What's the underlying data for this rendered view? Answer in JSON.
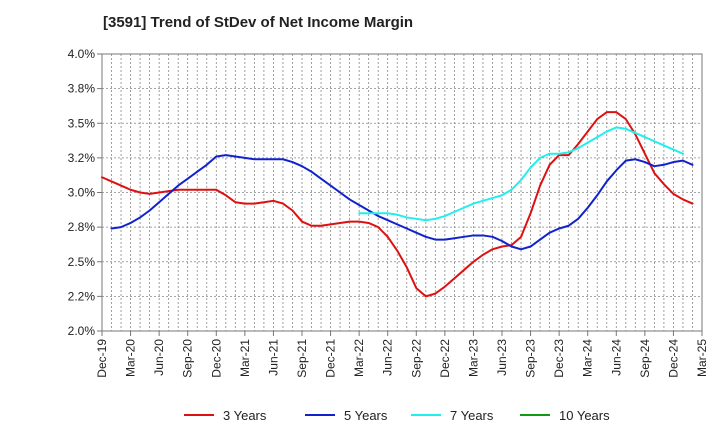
{
  "chart_data": {
    "type": "line",
    "title": "[3591]  Trend of StDev of Net Income Margin",
    "xlabel": "",
    "ylabel": "",
    "ylim": [
      0.02,
      0.04
    ],
    "y_ticks": [
      0.02,
      0.0225,
      0.025,
      0.0275,
      0.03,
      0.0325,
      0.035,
      0.0375,
      0.04
    ],
    "y_tick_labels": [
      "2.0%",
      "2.2%",
      "2.5%",
      "2.8%",
      "3.0%",
      "3.2%",
      "3.5%",
      "3.8%",
      "4.0%"
    ],
    "x_tick_labels": [
      "Dec-19",
      "Mar-20",
      "Jun-20",
      "Sep-20",
      "Dec-20",
      "Mar-21",
      "Jun-21",
      "Sep-21",
      "Dec-21",
      "Mar-22",
      "Jun-22",
      "Sep-22",
      "Dec-22",
      "Mar-23",
      "Jun-23",
      "Sep-23",
      "Dec-23",
      "Mar-24",
      "Jun-24",
      "Sep-24",
      "Dec-24",
      "Mar-25"
    ],
    "grid": true,
    "legend_position": "bottom",
    "series": [
      {
        "name": "3 Years",
        "color": "#dd1111",
        "points": [
          [
            "Dec-19",
            0.0311
          ],
          [
            "Jan-20",
            0.0308
          ],
          [
            "Feb-20",
            0.0305
          ],
          [
            "Mar-20",
            0.0302
          ],
          [
            "Apr-20",
            0.03
          ],
          [
            "May-20",
            0.0299
          ],
          [
            "Jun-20",
            0.03
          ],
          [
            "Jul-20",
            0.0301
          ],
          [
            "Aug-20",
            0.0302
          ],
          [
            "Sep-20",
            0.0302
          ],
          [
            "Oct-20",
            0.0302
          ],
          [
            "Nov-20",
            0.0302
          ],
          [
            "Dec-20",
            0.0302
          ],
          [
            "Jan-21",
            0.0298
          ],
          [
            "Feb-21",
            0.0293
          ],
          [
            "Mar-21",
            0.0292
          ],
          [
            "Apr-21",
            0.0292
          ],
          [
            "May-21",
            0.0293
          ],
          [
            "Jun-21",
            0.0294
          ],
          [
            "Jul-21",
            0.0292
          ],
          [
            "Aug-21",
            0.0287
          ],
          [
            "Sep-21",
            0.0279
          ],
          [
            "Oct-21",
            0.0276
          ],
          [
            "Nov-21",
            0.0276
          ],
          [
            "Dec-21",
            0.0277
          ],
          [
            "Jan-22",
            0.0278
          ],
          [
            "Feb-22",
            0.0279
          ],
          [
            "Mar-22",
            0.0279
          ],
          [
            "Apr-22",
            0.0278
          ],
          [
            "May-22",
            0.0275
          ],
          [
            "Jun-22",
            0.0268
          ],
          [
            "Jul-22",
            0.0258
          ],
          [
            "Aug-22",
            0.0246
          ],
          [
            "Sep-22",
            0.0231
          ],
          [
            "Oct-22",
            0.0225
          ],
          [
            "Nov-22",
            0.0227
          ],
          [
            "Dec-22",
            0.0232
          ],
          [
            "Jan-23",
            0.0238
          ],
          [
            "Feb-23",
            0.0244
          ],
          [
            "Mar-23",
            0.025
          ],
          [
            "Apr-23",
            0.0255
          ],
          [
            "May-23",
            0.0259
          ],
          [
            "Jun-23",
            0.0261
          ],
          [
            "Jul-23",
            0.0262
          ],
          [
            "Aug-23",
            0.0268
          ],
          [
            "Sep-23",
            0.0285
          ],
          [
            "Oct-23",
            0.0305
          ],
          [
            "Nov-23",
            0.032
          ],
          [
            "Dec-23",
            0.0327
          ],
          [
            "Jan-24",
            0.0327
          ],
          [
            "Feb-24",
            0.0335
          ],
          [
            "Mar-24",
            0.0344
          ],
          [
            "Apr-24",
            0.0353
          ],
          [
            "May-24",
            0.0358
          ],
          [
            "Jun-24",
            0.0358
          ],
          [
            "Jul-24",
            0.0353
          ],
          [
            "Aug-24",
            0.0342
          ],
          [
            "Sep-24",
            0.0328
          ],
          [
            "Oct-24",
            0.0314
          ],
          [
            "Nov-24",
            0.0306
          ],
          [
            "Dec-24",
            0.0299
          ],
          [
            "Jan-25",
            0.0295
          ],
          [
            "Feb-25",
            0.0292
          ]
        ]
      },
      {
        "name": "5 Years",
        "color": "#1122cc",
        "points": [
          [
            "Dec-19",
            null
          ],
          [
            "Jan-20",
            0.0274
          ],
          [
            "Feb-20",
            0.0275
          ],
          [
            "Mar-20",
            0.0278
          ],
          [
            "Apr-20",
            0.0282
          ],
          [
            "May-20",
            0.0287
          ],
          [
            "Jun-20",
            0.0293
          ],
          [
            "Jul-20",
            0.0299
          ],
          [
            "Aug-20",
            0.0305
          ],
          [
            "Sep-20",
            0.031
          ],
          [
            "Oct-20",
            0.0315
          ],
          [
            "Nov-20",
            0.032
          ],
          [
            "Dec-20",
            0.0326
          ],
          [
            "Jan-21",
            0.0327
          ],
          [
            "Feb-21",
            0.0326
          ],
          [
            "Mar-21",
            0.0325
          ],
          [
            "Apr-21",
            0.0324
          ],
          [
            "May-21",
            0.0324
          ],
          [
            "Jun-21",
            0.0324
          ],
          [
            "Jul-21",
            0.0324
          ],
          [
            "Aug-21",
            0.0322
          ],
          [
            "Sep-21",
            0.0319
          ],
          [
            "Oct-21",
            0.0315
          ],
          [
            "Nov-21",
            0.031
          ],
          [
            "Dec-21",
            0.0305
          ],
          [
            "Jan-22",
            0.03
          ],
          [
            "Feb-22",
            0.0295
          ],
          [
            "Mar-22",
            0.0291
          ],
          [
            "Apr-22",
            0.0287
          ],
          [
            "May-22",
            0.0283
          ],
          [
            "Jun-22",
            0.028
          ],
          [
            "Jul-22",
            0.0277
          ],
          [
            "Aug-22",
            0.0274
          ],
          [
            "Sep-22",
            0.0271
          ],
          [
            "Oct-22",
            0.0268
          ],
          [
            "Nov-22",
            0.0266
          ],
          [
            "Dec-22",
            0.0266
          ],
          [
            "Jan-23",
            0.0267
          ],
          [
            "Feb-23",
            0.0268
          ],
          [
            "Mar-23",
            0.0269
          ],
          [
            "Apr-23",
            0.0269
          ],
          [
            "May-23",
            0.0268
          ],
          [
            "Jun-23",
            0.0265
          ],
          [
            "Jul-23",
            0.0261
          ],
          [
            "Aug-23",
            0.0259
          ],
          [
            "Sep-23",
            0.0261
          ],
          [
            "Oct-23",
            0.0266
          ],
          [
            "Nov-23",
            0.0271
          ],
          [
            "Dec-23",
            0.0274
          ],
          [
            "Jan-24",
            0.0276
          ],
          [
            "Feb-24",
            0.0281
          ],
          [
            "Mar-24",
            0.0289
          ],
          [
            "Apr-24",
            0.0298
          ],
          [
            "May-24",
            0.0308
          ],
          [
            "Jun-24",
            0.0316
          ],
          [
            "Jul-24",
            0.0323
          ],
          [
            "Aug-24",
            0.0324
          ],
          [
            "Sep-24",
            0.0322
          ],
          [
            "Oct-24",
            0.0319
          ],
          [
            "Nov-24",
            0.032
          ],
          [
            "Dec-24",
            0.0322
          ],
          [
            "Jan-25",
            0.0323
          ],
          [
            "Feb-25",
            0.032
          ]
        ]
      },
      {
        "name": "7 Years",
        "color": "#22eeee",
        "points": [
          [
            "Mar-22",
            0.0285
          ],
          [
            "Apr-22",
            0.0285
          ],
          [
            "May-22",
            0.0285
          ],
          [
            "Jun-22",
            0.0285
          ],
          [
            "Jul-22",
            0.0284
          ],
          [
            "Aug-22",
            0.0282
          ],
          [
            "Sep-22",
            0.0281
          ],
          [
            "Oct-22",
            0.028
          ],
          [
            "Nov-22",
            0.0281
          ],
          [
            "Dec-22",
            0.0283
          ],
          [
            "Jan-23",
            0.0286
          ],
          [
            "Feb-23",
            0.0289
          ],
          [
            "Mar-23",
            0.0292
          ],
          [
            "Apr-23",
            0.0294
          ],
          [
            "May-23",
            0.0296
          ],
          [
            "Jun-23",
            0.0298
          ],
          [
            "Jul-23",
            0.0302
          ],
          [
            "Aug-23",
            0.0309
          ],
          [
            "Sep-23",
            0.0318
          ],
          [
            "Oct-23",
            0.0325
          ],
          [
            "Nov-23",
            0.0328
          ],
          [
            "Dec-23",
            0.0328
          ],
          [
            "Jan-24",
            0.0329
          ],
          [
            "Feb-24",
            0.0332
          ],
          [
            "Mar-24",
            0.0336
          ],
          [
            "Apr-24",
            0.034
          ],
          [
            "May-24",
            0.0344
          ],
          [
            "Jun-24",
            0.0347
          ],
          [
            "Jul-24",
            0.0346
          ],
          [
            "Aug-24",
            0.0343
          ],
          [
            "Sep-24",
            0.034
          ],
          [
            "Oct-24",
            0.0337
          ],
          [
            "Nov-24",
            0.0334
          ],
          [
            "Dec-24",
            0.0331
          ],
          [
            "Jan-25",
            0.0328
          ]
        ]
      },
      {
        "name": "10 Years",
        "color": "#119911",
        "points": []
      }
    ]
  }
}
